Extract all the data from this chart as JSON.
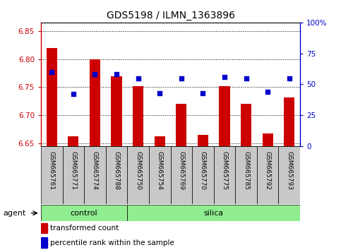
{
  "title": "GDS5198 / ILMN_1363896",
  "samples": [
    "GSM665761",
    "GSM665771",
    "GSM665774",
    "GSM665788",
    "GSM665750",
    "GSM665754",
    "GSM665769",
    "GSM665770",
    "GSM665775",
    "GSM665785",
    "GSM665792",
    "GSM665793"
  ],
  "bar_values": [
    6.82,
    6.663,
    6.8,
    6.77,
    6.752,
    6.663,
    6.72,
    6.665,
    6.752,
    6.72,
    6.668,
    6.732
  ],
  "percentile_values": [
    60.0,
    42.0,
    58.0,
    58.0,
    55.0,
    43.0,
    55.0,
    43.0,
    56.0,
    55.0,
    44.0,
    55.0
  ],
  "bar_bottom": 6.645,
  "ylim_left": [
    6.645,
    6.865
  ],
  "ylim_right": [
    0,
    100
  ],
  "yticks_left": [
    6.65,
    6.7,
    6.75,
    6.8,
    6.85
  ],
  "yticks_right": [
    0,
    25,
    50,
    75,
    100
  ],
  "ytick_labels_right": [
    "0",
    "25",
    "50",
    "75",
    "100%"
  ],
  "control_count": 4,
  "silica_count": 8,
  "bar_color": "#CC0000",
  "dot_color": "#0000CC",
  "green_bg": "#90EE90",
  "sample_bg": "#C8C8C8",
  "agent_label": "agent",
  "control_label": "control",
  "silica_label": "silica",
  "legend_bar_label": "transformed count",
  "legend_dot_label": "percentile rank within the sample",
  "font_size_title": 10,
  "font_size_ticks": 7.5,
  "font_size_sample": 6.5,
  "font_size_agent": 8,
  "font_size_legend": 7.5
}
